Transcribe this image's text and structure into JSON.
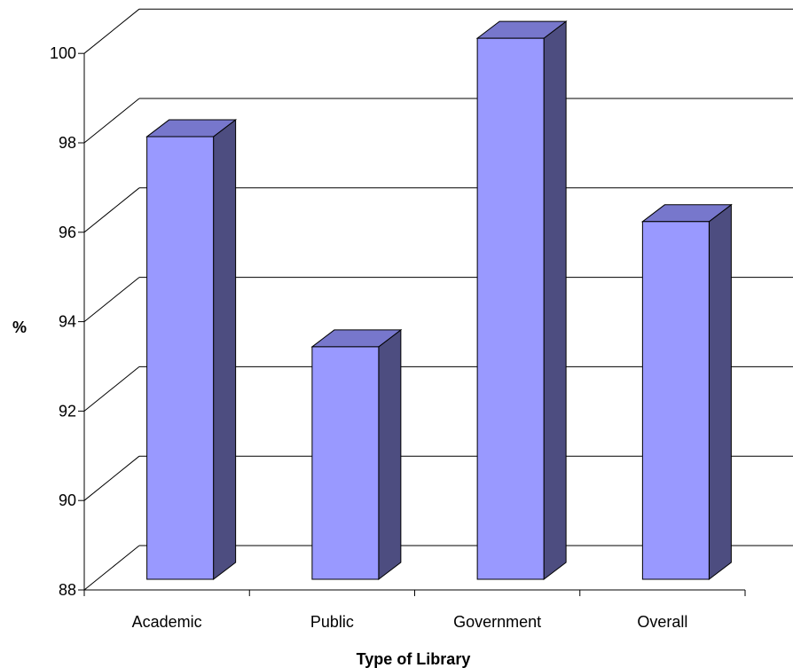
{
  "chart_data": {
    "type": "bar",
    "style": "3d-column",
    "categories": [
      "Academic",
      "Public",
      "Government",
      "Overall"
    ],
    "values": [
      97.9,
      93.2,
      100.1,
      96.0
    ],
    "xlabel": "Type of Library",
    "ylabel": "%",
    "ylim": [
      88,
      100
    ],
    "yticks": [
      88,
      90,
      92,
      94,
      96,
      98,
      100
    ],
    "grid": true,
    "legend": false,
    "colors": {
      "bar_front": "#9999ff",
      "bar_top": "#7777cc",
      "bar_side": "#4d4d80",
      "grid": "#000000"
    }
  }
}
